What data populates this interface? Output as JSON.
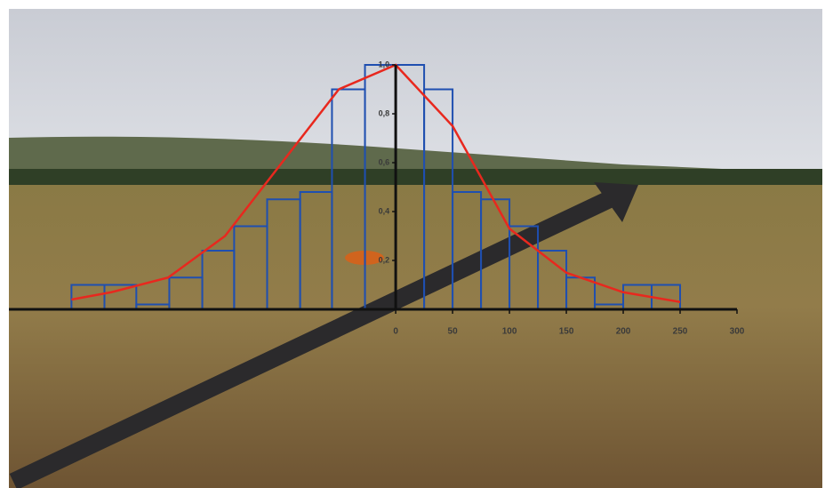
{
  "chart_data": {
    "type": "histogram",
    "bins": [
      -285,
      -256,
      -228,
      -199,
      -170,
      -142,
      -113,
      -84,
      -56,
      -27,
      0,
      25,
      50,
      75,
      100,
      125,
      150,
      175,
      200,
      225,
      250
    ],
    "values": [
      0.1,
      0.1,
      0.02,
      0.13,
      0.24,
      0.34,
      0.45,
      0.48,
      0.9,
      1.0,
      1.0,
      0.9,
      0.48,
      0.45,
      0.34,
      0.24,
      0.13,
      0.02,
      0.1,
      0.1
    ],
    "color": "#1f4fb0",
    "curve": {
      "x": [
        -285,
        -250,
        -200,
        -150,
        -100,
        -50,
        0,
        50,
        100,
        150,
        200,
        250
      ],
      "values": [
        0.04,
        0.07,
        0.13,
        0.3,
        0.6,
        0.9,
        1.0,
        0.75,
        0.33,
        0.15,
        0.07,
        0.03
      ],
      "color": "#e8281e"
    },
    "xlim": [
      -340,
      300
    ],
    "xticks": [
      0,
      50,
      100,
      150,
      200,
      250,
      300
    ],
    "ylim": [
      0,
      1.0
    ],
    "yticks": [
      {
        "value": 0.2,
        "label": "0,2"
      },
      {
        "value": 0.4,
        "label": "0,4"
      },
      {
        "value": 0.6,
        "label": "0,6"
      },
      {
        "value": 0.8,
        "label": "0,8"
      },
      {
        "value": 1.0,
        "label": "1,0"
      }
    ]
  }
}
